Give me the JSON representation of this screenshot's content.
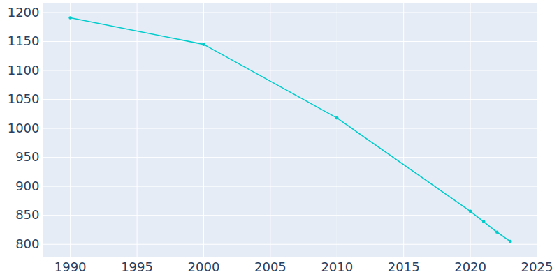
{
  "chart_data": {
    "type": "line",
    "x": [
      1990,
      2000,
      2010,
      2020,
      2021,
      2022,
      2023
    ],
    "values": [
      1191,
      1145,
      1018,
      857,
      839,
      821,
      805
    ],
    "color": "#00cccc",
    "marker": "circle",
    "xlim": [
      1988,
      2025
    ],
    "xticks": [
      1990,
      1995,
      2000,
      2005,
      2010,
      2015,
      2020,
      2025
    ],
    "ylim": [
      778,
      1215
    ],
    "yticks": [
      800,
      850,
      900,
      950,
      1000,
      1050,
      1100,
      1150,
      1200
    ],
    "grid": true
  }
}
